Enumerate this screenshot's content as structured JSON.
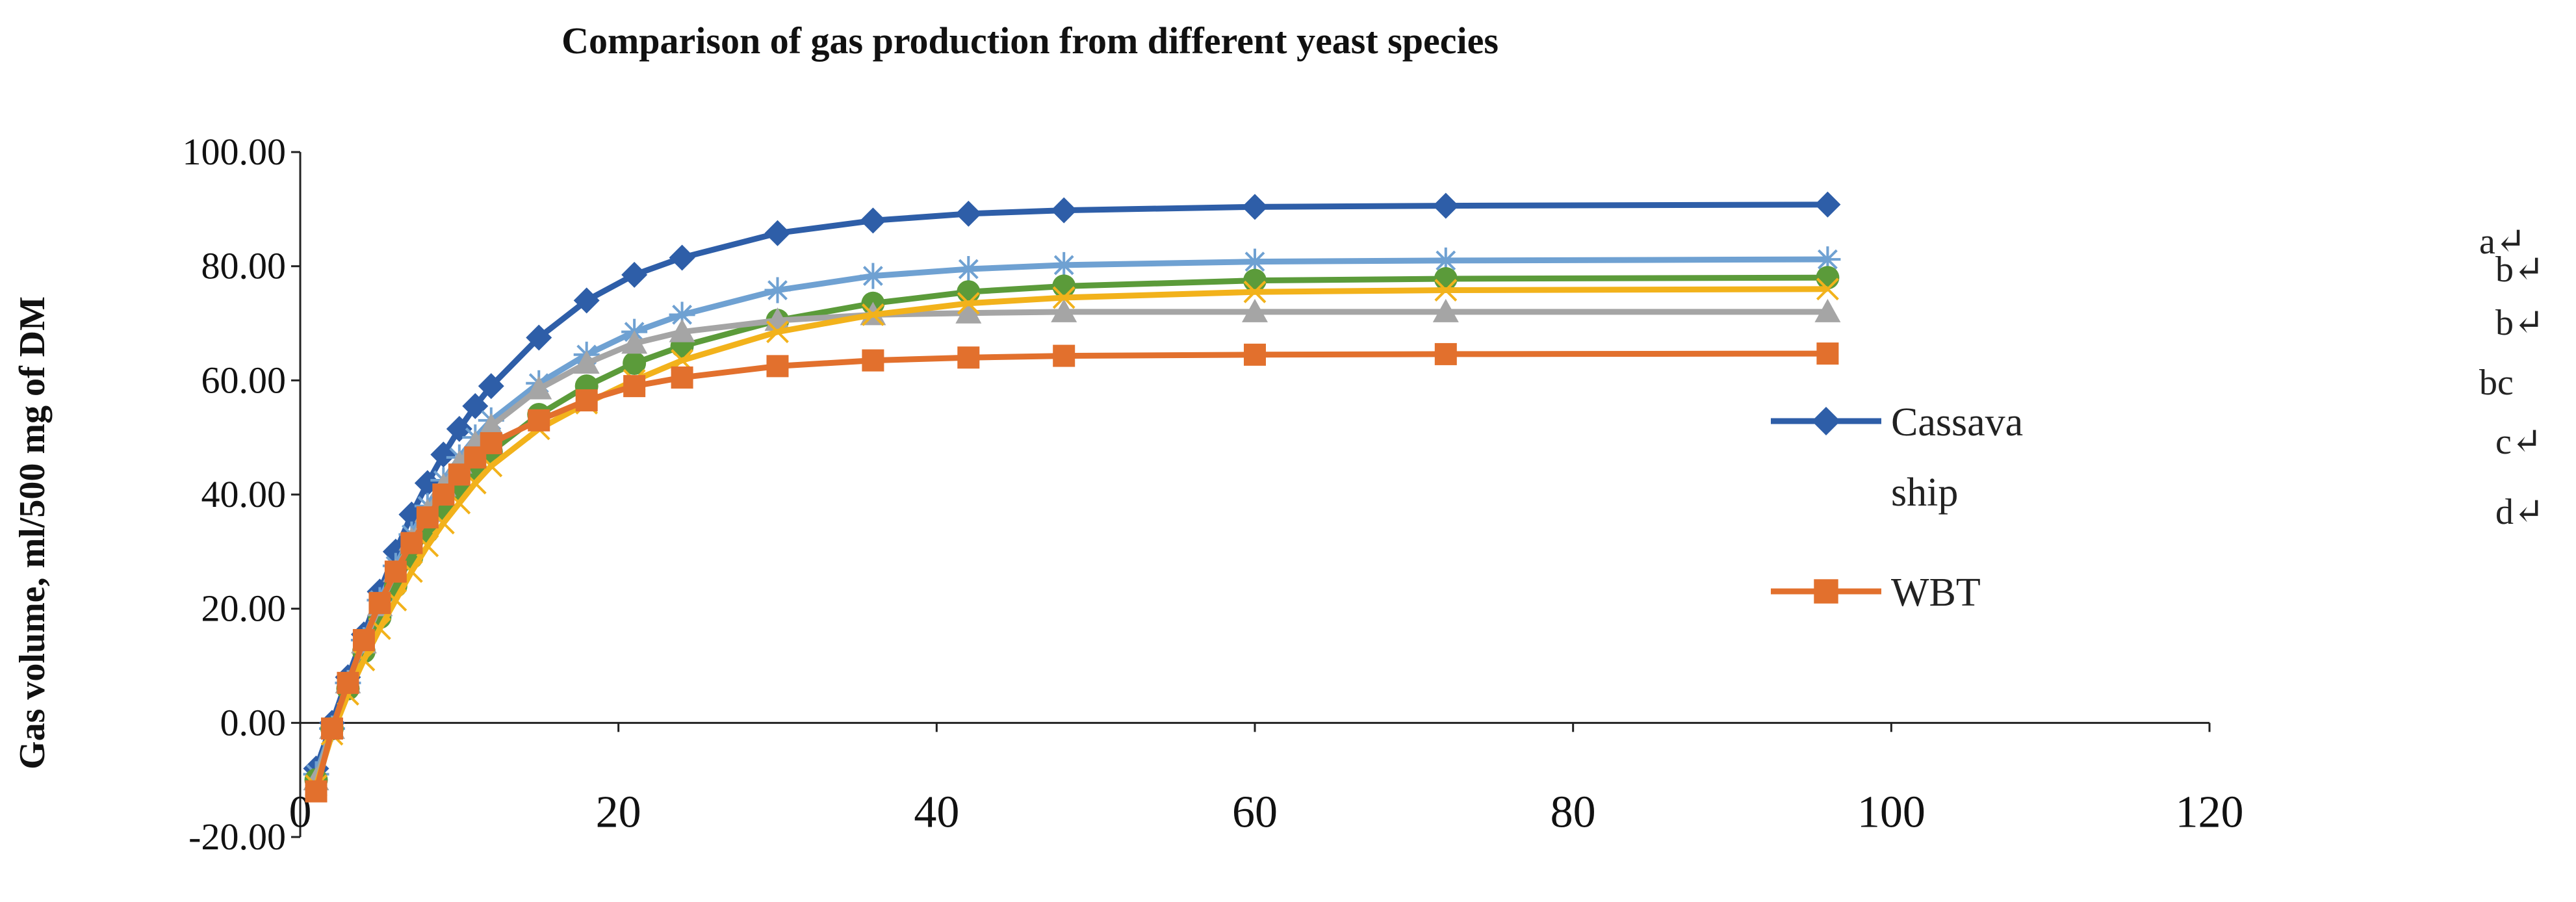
{
  "chart_data": {
    "type": "line",
    "title": "Comparison of gas production from different yeast species",
    "xlabel": "",
    "ylabel": "Gas volume, ml/500 mg of DM",
    "xlim": [
      0,
      120
    ],
    "ylim": [
      -20,
      100
    ],
    "x_ticks": [
      "0",
      "20",
      "40",
      "60",
      "80",
      "100",
      "120"
    ],
    "y_ticks": [
      "-20.00",
      "0.00",
      "20.00",
      "40.00",
      "60.00",
      "80.00",
      "100.00"
    ],
    "grid": false,
    "x": [
      1,
      2,
      3,
      4,
      5,
      6,
      7,
      8,
      9,
      10,
      11,
      12,
      15,
      18,
      21,
      24,
      30,
      36,
      42,
      48,
      60,
      72,
      96
    ],
    "series": [
      {
        "name": "Cassava ship",
        "color": "#2e5ea8",
        "marker": "diamond",
        "legend": true,
        "values": [
          -8.0,
          0.0,
          8.0,
          15.5,
          23.0,
          30.0,
          36.5,
          42.0,
          47.0,
          51.5,
          55.5,
          59.0,
          67.5,
          74.0,
          78.5,
          81.5,
          85.8,
          88.0,
          89.2,
          89.8,
          90.4,
          90.6,
          90.8
        ]
      },
      {
        "name": "",
        "color": "#6fa1d2",
        "marker": "star",
        "legend": false,
        "values": [
          -9.0,
          -1.0,
          7.0,
          14.5,
          21.5,
          27.5,
          33.0,
          38.0,
          42.5,
          46.5,
          50.0,
          53.0,
          59.5,
          64.5,
          68.5,
          71.5,
          75.8,
          78.3,
          79.5,
          80.2,
          80.8,
          81.0,
          81.2
        ]
      },
      {
        "name": "",
        "color": "#5b9b3a",
        "marker": "circle",
        "legend": false,
        "values": [
          -10.0,
          -1.0,
          6.0,
          12.5,
          18.5,
          24.0,
          29.0,
          33.5,
          37.5,
          41.0,
          44.5,
          47.5,
          54.0,
          59.0,
          63.0,
          66.0,
          70.5,
          73.5,
          75.5,
          76.5,
          77.5,
          77.8,
          78.0
        ]
      },
      {
        "name": "",
        "color": "#a5a5a5",
        "marker": "triangle",
        "legend": false,
        "values": [
          -10.0,
          -1.0,
          7.0,
          14.0,
          20.5,
          26.5,
          32.0,
          37.0,
          41.5,
          45.5,
          49.0,
          52.0,
          58.5,
          63.0,
          66.5,
          68.5,
          70.5,
          71.5,
          71.8,
          72.0,
          72.0,
          72.0,
          72.0
        ]
      },
      {
        "name": "",
        "color": "#f2b21b",
        "marker": "x",
        "legend": false,
        "values": [
          -11.0,
          -2.0,
          5.0,
          11.0,
          16.5,
          21.5,
          26.5,
          31.0,
          35.0,
          38.5,
          42.0,
          45.0,
          51.5,
          56.0,
          60.0,
          63.5,
          68.5,
          71.5,
          73.5,
          74.5,
          75.5,
          75.8,
          76.0
        ]
      },
      {
        "name": "WBT",
        "color": "#e2702d",
        "marker": "square",
        "legend": true,
        "values": [
          -12.0,
          -1.0,
          7.0,
          14.5,
          21.0,
          26.5,
          31.5,
          36.0,
          40.0,
          43.5,
          46.5,
          49.0,
          53.0,
          56.5,
          59.0,
          60.5,
          62.5,
          63.5,
          64.0,
          64.3,
          64.5,
          64.6,
          64.7
        ]
      }
    ],
    "significance_letters": [
      "a↵",
      "b↵",
      "b↵",
      "bc",
      "c↵",
      "d↵"
    ]
  }
}
